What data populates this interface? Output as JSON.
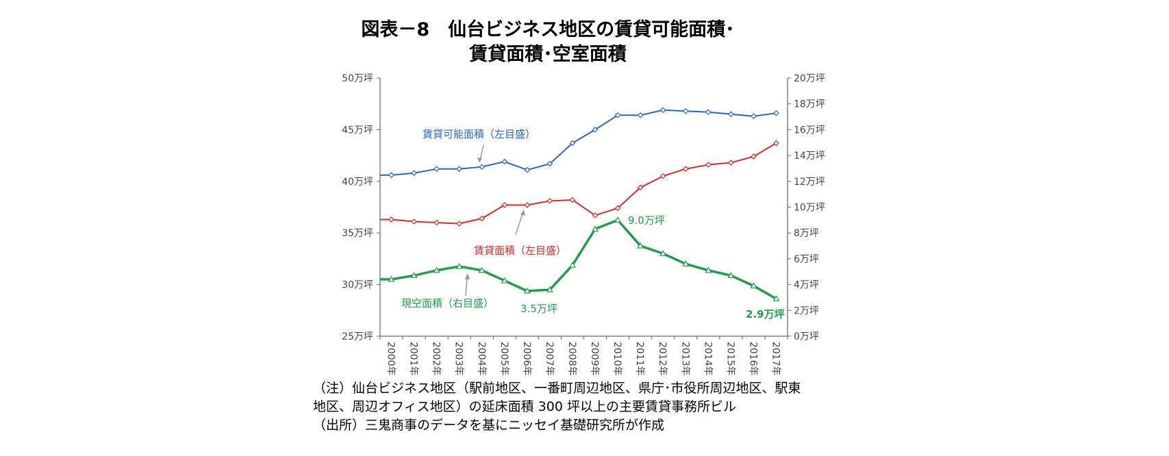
{
  "title": {
    "line1": "図表－8　仙台ビジネス地区の賃貸可能面積･",
    "line2": "賃貸面積･空室面積"
  },
  "chart_data": {
    "type": "line",
    "categories": [
      "2000年",
      "2001年",
      "2002年",
      "2003年",
      "2004年",
      "2005年",
      "2006年",
      "2007年",
      "2008年",
      "2009年",
      "2010年",
      "2011年",
      "2012年",
      "2013年",
      "2014年",
      "2015年",
      "2016年",
      "2017年"
    ],
    "y_left": {
      "min": 25,
      "max": 50,
      "step": 5,
      "tick_labels": [
        "25万坪",
        "30万坪",
        "35万坪",
        "40万坪",
        "45万坪",
        "50万坪"
      ]
    },
    "y_right": {
      "min": 0,
      "max": 20,
      "step": 2,
      "tick_labels": [
        "0万坪",
        "2万坪",
        "4万坪",
        "6万坪",
        "8万坪",
        "10万坪",
        "12万坪",
        "14万坪",
        "16万坪",
        "18万坪",
        "20万坪"
      ]
    },
    "grid": false,
    "series": [
      {
        "name": "賃貸可能面積（左目盛）",
        "axis": "left",
        "color": "#2a64c8",
        "marker": "diamond",
        "values": [
          40.6,
          40.8,
          41.2,
          41.2,
          41.4,
          41.9,
          41.1,
          41.7,
          43.7,
          45.0,
          46.4,
          46.4,
          46.9,
          46.8,
          46.7,
          46.5,
          46.3,
          46.6
        ]
      },
      {
        "name": "賃貸面積（左目盛）",
        "axis": "left",
        "color": "#d42a2a",
        "marker": "diamond",
        "values": [
          36.3,
          36.1,
          36.0,
          35.9,
          36.4,
          37.7,
          37.7,
          38.1,
          38.2,
          36.7,
          37.4,
          39.4,
          40.5,
          41.2,
          41.6,
          41.8,
          42.4,
          43.7
        ]
      },
      {
        "name": "現空面積（右目盛）",
        "axis": "right",
        "color": "#1e9e48",
        "marker": "triangle",
        "values": [
          4.4,
          4.7,
          5.1,
          5.4,
          5.1,
          4.3,
          3.5,
          3.6,
          5.5,
          8.3,
          9.0,
          7.0,
          6.4,
          5.6,
          5.1,
          4.7,
          3.9,
          2.9
        ]
      }
    ],
    "annotations": {
      "min_label": "3.5万坪",
      "peak_label": "9.0万坪",
      "last_label": "2.9万坪"
    }
  },
  "notes": [
    "（注）仙台ビジネス地区（駅前地区、一番町周辺地区、県庁･市役所周辺地区、駅東",
    "地区、周辺オフィス地区）の延床面積 300 坪以上の主要賃貸事務所ビル",
    "（出所）三鬼商事のデータを基にニッセイ基礎研究所が作成"
  ]
}
